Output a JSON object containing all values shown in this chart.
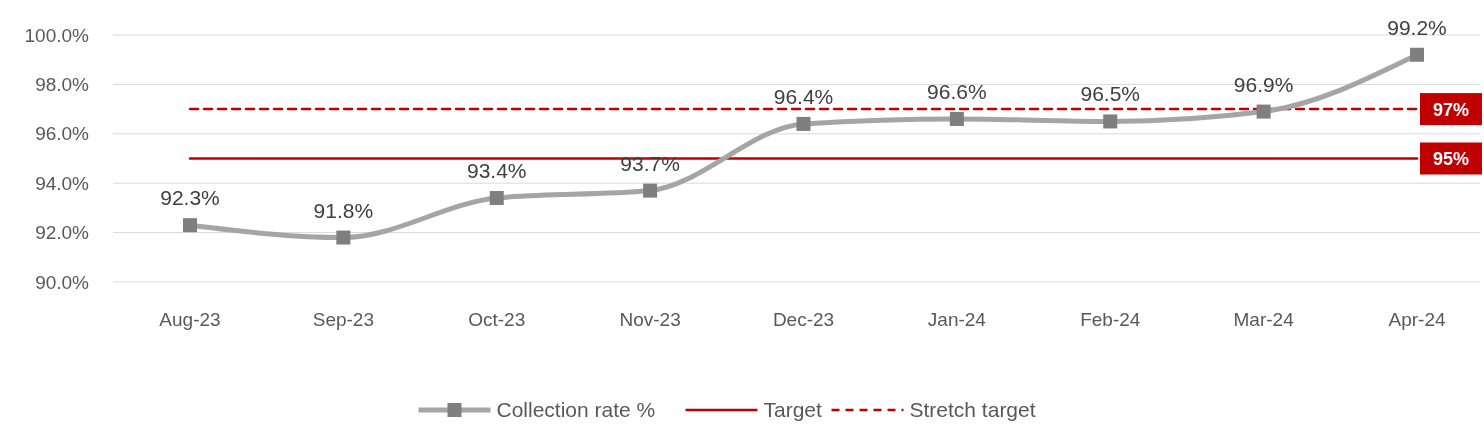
{
  "chart_data": {
    "type": "line",
    "categories": [
      "Aug-23",
      "Sep-23",
      "Oct-23",
      "Nov-23",
      "Dec-23",
      "Jan-24",
      "Feb-24",
      "Mar-24",
      "Apr-24"
    ],
    "series": [
      {
        "name": "Collection rate %",
        "color": "#a5a5a5",
        "marker": "square",
        "line_style": "solid",
        "values": [
          92.3,
          91.8,
          93.4,
          93.7,
          96.4,
          96.6,
          96.5,
          96.9,
          99.2
        ],
        "value_labels": [
          "92.3%",
          "91.8%",
          "93.4%",
          "93.7%",
          "96.4%",
          "96.6%",
          "96.5%",
          "96.9%",
          "99.2%"
        ]
      },
      {
        "name": "Target",
        "color": "#c00000",
        "marker": "none",
        "line_style": "solid",
        "values": [
          95,
          95,
          95,
          95,
          95,
          95,
          95,
          95,
          95
        ]
      },
      {
        "name": "Stretch target",
        "color": "#c00000",
        "marker": "none",
        "line_style": "dashed",
        "values": [
          97,
          97,
          97,
          97,
          97,
          97,
          97,
          97,
          97
        ]
      }
    ],
    "ylim": [
      90,
      100
    ],
    "yticks": [
      {
        "value": 90,
        "label": "90.0%"
      },
      {
        "value": 92,
        "label": "92.0%"
      },
      {
        "value": 94,
        "label": "94.0%"
      },
      {
        "value": 96,
        "label": "96.0%"
      },
      {
        "value": 98,
        "label": "98.0%"
      },
      {
        "value": 100,
        "label": "100.0%"
      }
    ],
    "grid": "y",
    "legend": "bottom",
    "annotations": [
      "97%",
      "95%"
    ]
  }
}
